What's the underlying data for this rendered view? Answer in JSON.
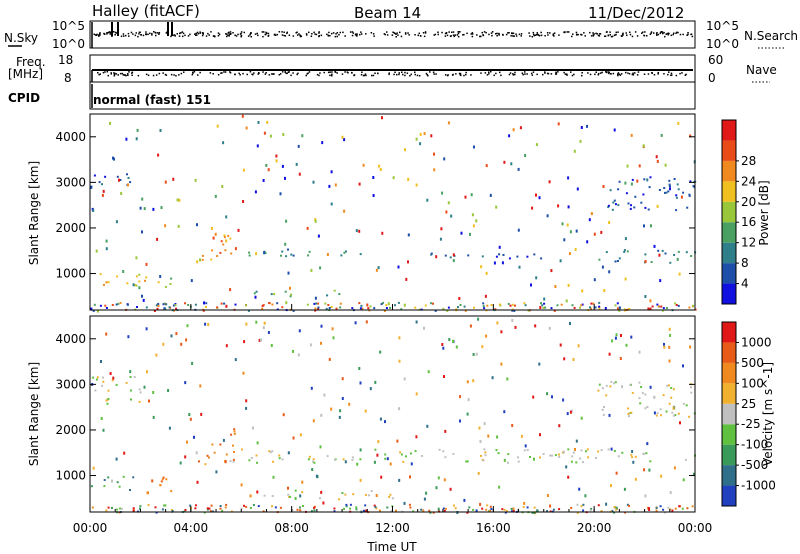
{
  "header": {
    "station": "Halley (fitACF)",
    "beam": "Beam 14",
    "date": "11/Dec/2012"
  },
  "panels": {
    "nsky": {
      "label": "N.Sky",
      "top_tick": "10^5",
      "bottom_tick": "10^0"
    },
    "nsearch": {
      "label": "N.Search",
      "top_tick": "10^5",
      "bottom_tick": "10^0"
    },
    "freq": {
      "label": "Freq.",
      "unit": "[MHz]",
      "top_tick": "18",
      "bottom_tick": "8"
    },
    "nave": {
      "label": "Nave",
      "top_tick": "60",
      "bottom_tick": "0"
    },
    "cpid": {
      "label": "CPID",
      "text": "normal (fast) 151"
    }
  },
  "chart_data": [
    {
      "type": "heatmap",
      "name": "power",
      "ylabel": "Slant Range [km]",
      "yticks": [
        "1000",
        "2000",
        "3000",
        "4000"
      ],
      "ylim": [
        200,
        4500
      ],
      "x_range_hours": [
        0,
        24
      ],
      "colorbar": {
        "label": "Power [dB]",
        "ticks": [
          "4",
          "8",
          "12",
          "16",
          "20",
          "24",
          "28"
        ],
        "colors": [
          "#1010e0",
          "#1e4fa8",
          "#2f7f8a",
          "#4aa060",
          "#98c83a",
          "#f0c020",
          "#f08a20",
          "#e84a18",
          "#e01818"
        ]
      },
      "features": [
        {
          "t0": 0.0,
          "t1": 2.2,
          "r0": 700,
          "r1": 1050,
          "level": 5
        },
        {
          "t0": 2.5,
          "t1": 3.3,
          "r0": 700,
          "r1": 1000,
          "level": 4
        },
        {
          "t0": 4.2,
          "t1": 4.8,
          "r0": 1200,
          "r1": 1500,
          "level": 6
        },
        {
          "t0": 4.8,
          "t1": 5.6,
          "r0": 1300,
          "r1": 2100,
          "level": 6
        },
        {
          "t0": 0.0,
          "t1": 1.8,
          "r0": 2800,
          "r1": 3200,
          "level": 1
        },
        {
          "t0": 5.5,
          "t1": 12.0,
          "r0": 1400,
          "r1": 1550,
          "level": 2
        },
        {
          "t0": 12.0,
          "t1": 18.0,
          "r0": 1350,
          "r1": 1500,
          "level": 1
        },
        {
          "t0": 20.0,
          "t1": 24.0,
          "r0": 1250,
          "r1": 1550,
          "level": 2
        },
        {
          "t0": 20.5,
          "t1": 24.0,
          "r0": 2400,
          "r1": 3200,
          "level": 1
        },
        {
          "t0": 6.0,
          "t1": 10.0,
          "r0": 500,
          "r1": 650,
          "level": 3
        },
        {
          "t0": 18.5,
          "t1": 19.5,
          "r0": 250,
          "r1": 350,
          "level": 3
        }
      ]
    },
    {
      "type": "heatmap",
      "name": "velocity",
      "ylabel": "Slant Range [km]",
      "yticks": [
        "1000",
        "2000",
        "3000",
        "4000"
      ],
      "ylim": [
        200,
        4500
      ],
      "x_range_hours": [
        0,
        24
      ],
      "xlabel": "Time UT",
      "xticks": [
        "00:00",
        "04:00",
        "08:00",
        "12:00",
        "16:00",
        "20:00",
        "00:00"
      ],
      "colorbar": {
        "label": "Velocity [m s^-1]",
        "ticks": [
          "1000",
          "500",
          "100",
          "25",
          "-25",
          "-100",
          "-500",
          "-1000"
        ],
        "colors": [
          "#2040c0",
          "#2f6f8a",
          "#3a9a5a",
          "#60c040",
          "#c0c0c0",
          "#f0b030",
          "#f08a20",
          "#e85a18",
          "#e01818"
        ]
      },
      "features": [
        {
          "t0": 0.0,
          "t1": 1.8,
          "r0": 700,
          "r1": 1000,
          "level": 2
        },
        {
          "t0": 2.2,
          "t1": 3.4,
          "r0": 600,
          "r1": 1000,
          "level": 6
        },
        {
          "t0": 4.2,
          "t1": 4.8,
          "r0": 1200,
          "r1": 1600,
          "level": 6
        },
        {
          "t0": 4.8,
          "t1": 5.8,
          "r0": 1300,
          "r1": 2100,
          "level": 6
        },
        {
          "t0": 5.5,
          "t1": 24.0,
          "r0": 1300,
          "r1": 1600,
          "level": 4
        },
        {
          "t0": 20.0,
          "t1": 24.0,
          "r0": 2300,
          "r1": 3100,
          "level": 4
        },
        {
          "t0": 0.0,
          "t1": 2.0,
          "r0": 2500,
          "r1": 3200,
          "level": 4
        },
        {
          "t0": 6.5,
          "t1": 12.0,
          "r0": 500,
          "r1": 700,
          "level": 4
        }
      ]
    }
  ]
}
